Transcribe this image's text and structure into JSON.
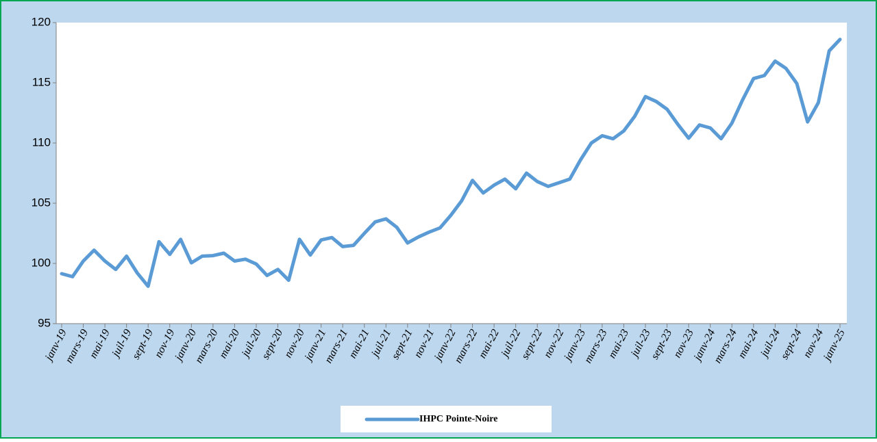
{
  "chart_data": {
    "type": "line",
    "categories": [
      "janv-19",
      null,
      "mars-19",
      null,
      "mai-19",
      null,
      "juil-19",
      null,
      "sept-19",
      null,
      "nov-19",
      null,
      "janv-20",
      null,
      "mars-20",
      null,
      "mai-20",
      null,
      "juil-20",
      null,
      "sept-20",
      null,
      "nov-20",
      null,
      "janv-21",
      null,
      "mars-21",
      null,
      "mai-21",
      null,
      "juil-21",
      null,
      "sept-21",
      null,
      "nov-21",
      null,
      "janv-22",
      null,
      "mars-22",
      null,
      "mai-22",
      null,
      "juil-22",
      null,
      "sept-22",
      null,
      "nov-22",
      null,
      "janv-23",
      null,
      "mars-23",
      null,
      "mai-23",
      null,
      "juil-23",
      null,
      "sept-23",
      null,
      "nov-23",
      null,
      "janv-24",
      null,
      "mars-24",
      null,
      "mai-24",
      null,
      "juil-24",
      null,
      "sept-24",
      null,
      "nov-24",
      null,
      "janv-25"
    ],
    "series": [
      {
        "name": "IHPC Pointe-Noire",
        "color": "#5b9bd5",
        "values": [
          99.15,
          98.9,
          100.2,
          101.1,
          100.2,
          99.5,
          100.6,
          99.2,
          98.1,
          101.8,
          100.75,
          102.0,
          100.05,
          100.6,
          100.65,
          100.85,
          100.2,
          100.35,
          99.95,
          99.0,
          99.5,
          98.6,
          102.0,
          100.7,
          101.95,
          102.15,
          101.4,
          101.5,
          102.5,
          103.45,
          103.7,
          103.0,
          101.7,
          102.2,
          102.6,
          102.95,
          104.0,
          105.2,
          106.9,
          105.85,
          106.5,
          107.0,
          106.2,
          107.5,
          106.8,
          106.4,
          106.7,
          107.0,
          108.6,
          110.0,
          110.6,
          110.35,
          111.0,
          112.2,
          113.85,
          113.45,
          112.8,
          111.55,
          110.4,
          111.5,
          111.25,
          110.35,
          111.65,
          113.6,
          115.35,
          115.6,
          116.8,
          116.2,
          114.95,
          111.75,
          113.35,
          117.65,
          118.6
        ]
      }
    ],
    "ylim": [
      95,
      120
    ],
    "yticks": [
      95,
      100,
      105,
      110,
      115,
      120
    ],
    "grid": false,
    "legend": "bottom"
  }
}
